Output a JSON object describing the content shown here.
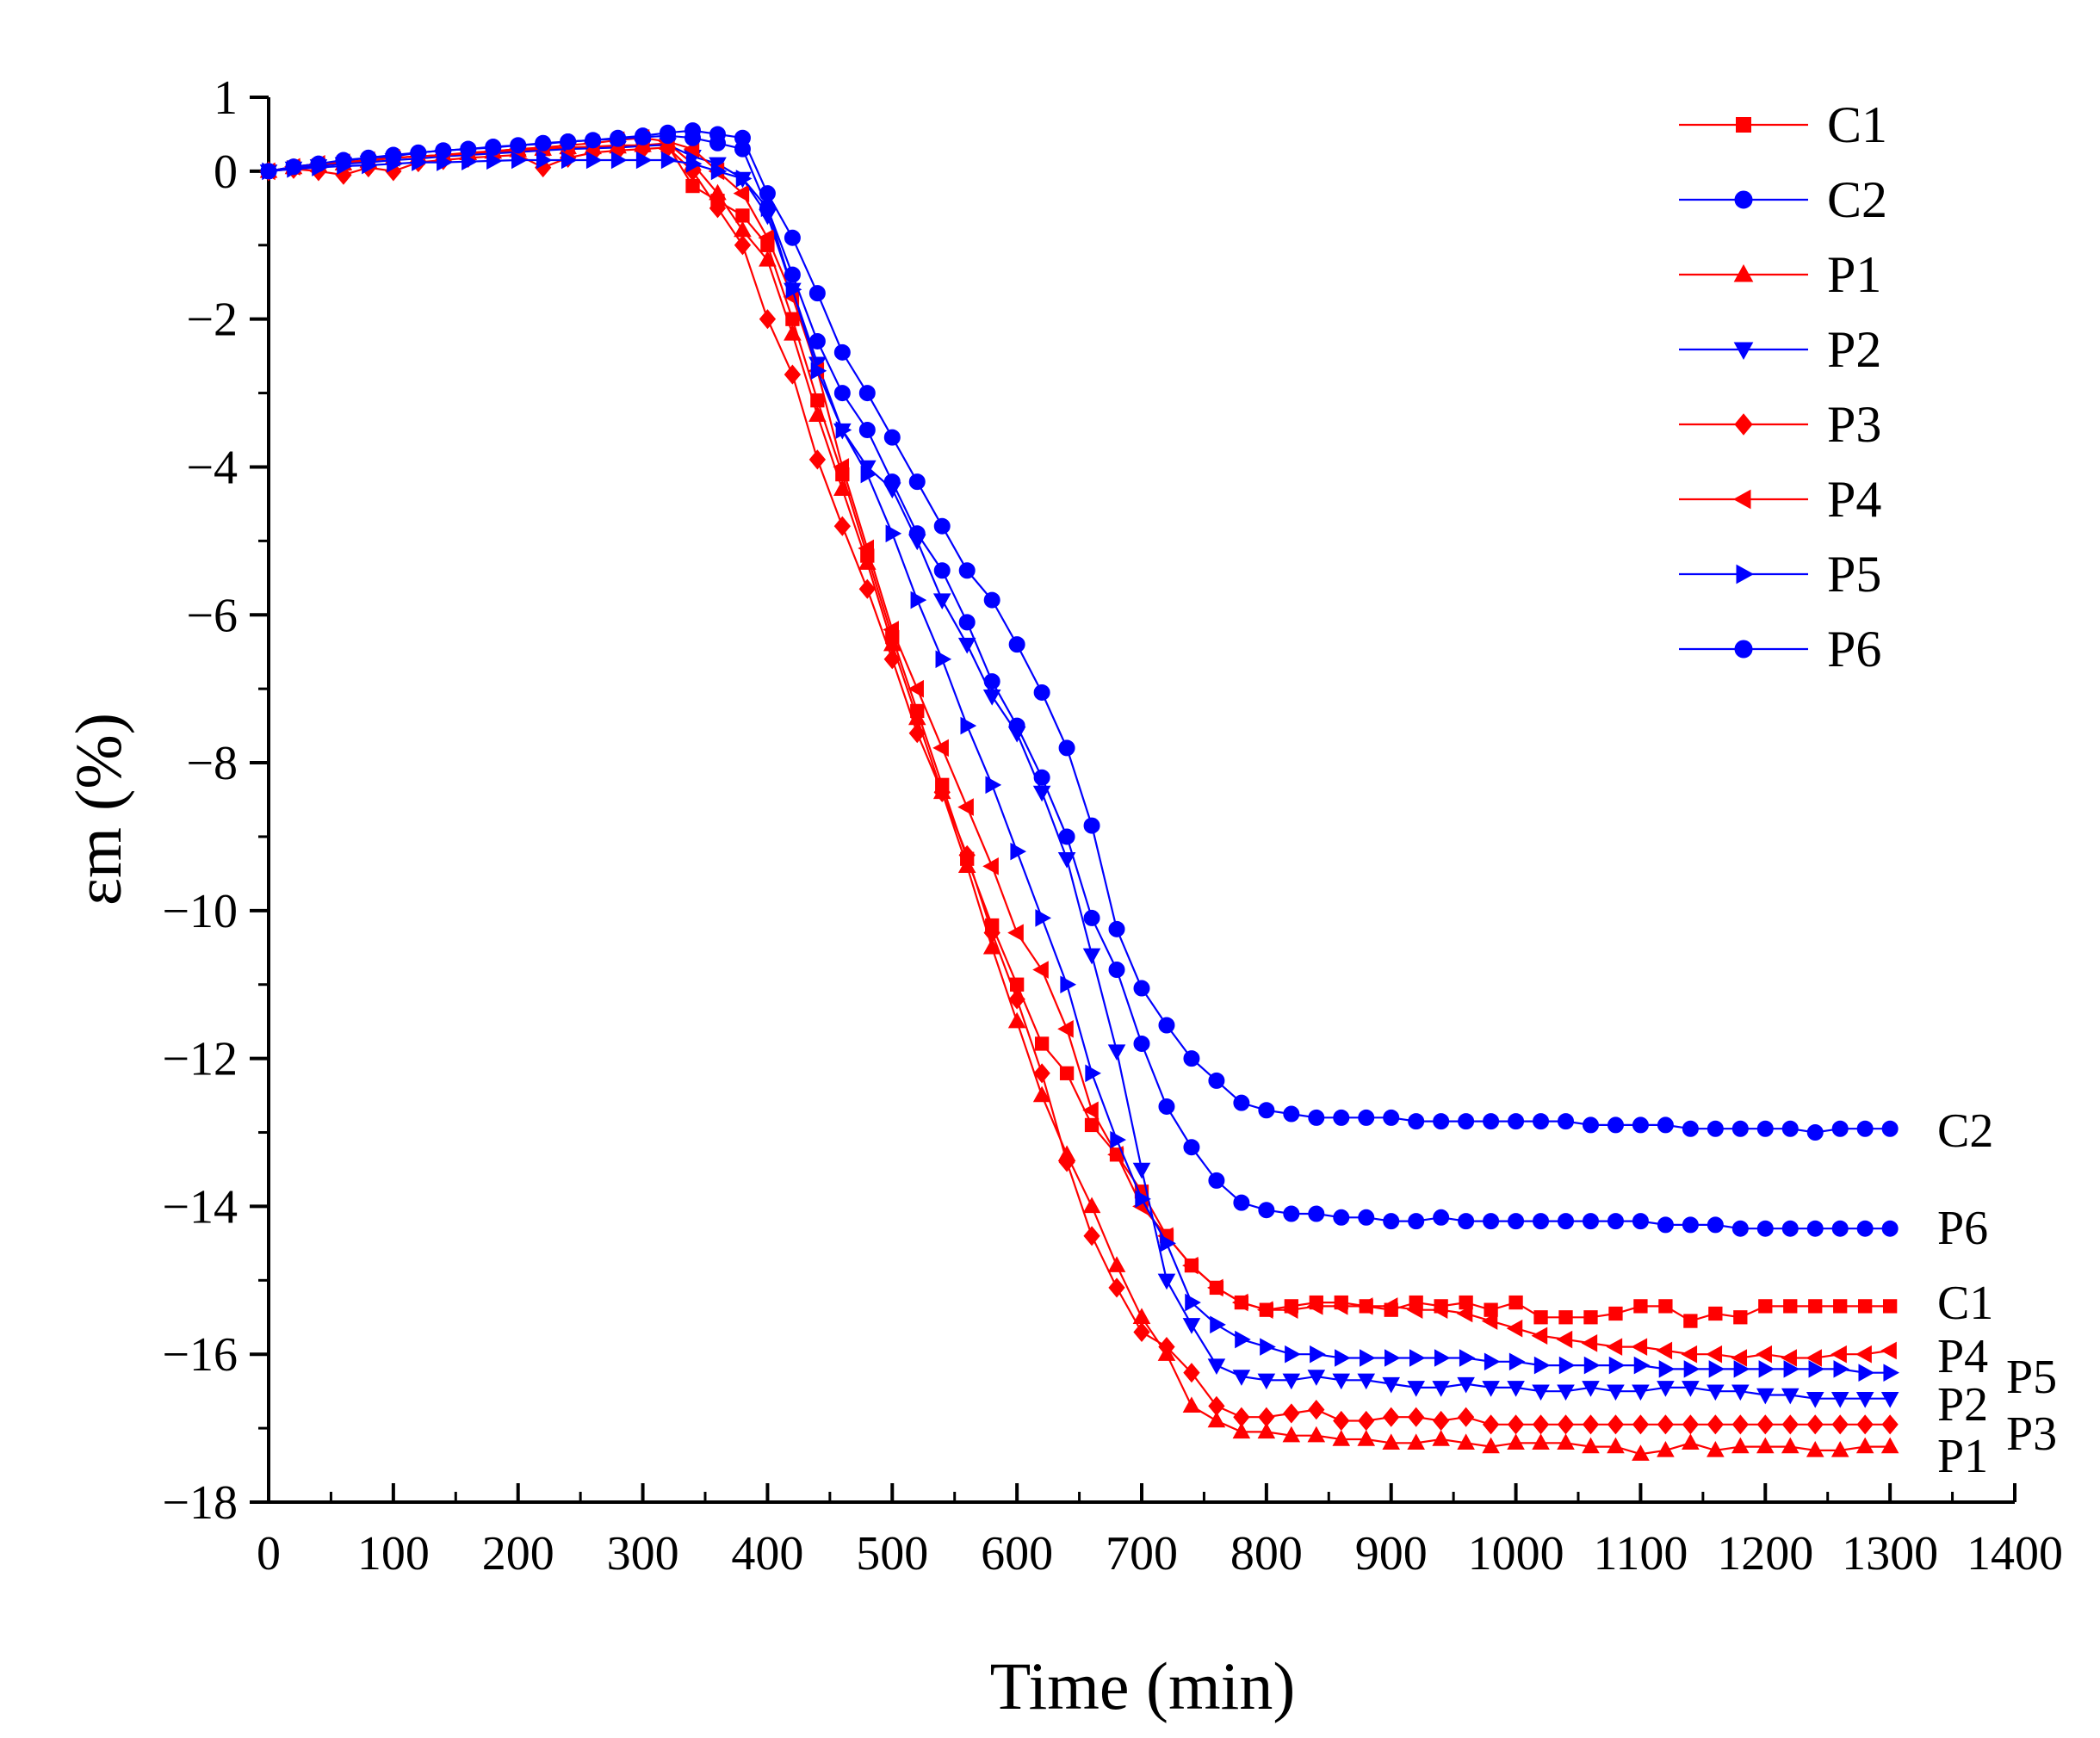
{
  "chart_data": {
    "type": "line",
    "xlabel": "Time (min)",
    "ylabel": "εm (%)",
    "xlim": [
      0,
      1400
    ],
    "ylim": [
      -18,
      1
    ],
    "xticks": [
      0,
      100,
      200,
      300,
      400,
      500,
      600,
      700,
      800,
      900,
      1000,
      1100,
      1200,
      1300,
      1400
    ],
    "xtick_labels": [
      "0",
      "100",
      "200",
      "300",
      "400",
      "500",
      "600",
      "700",
      "800",
      "900",
      "1000",
      "1100",
      "1200",
      "1300",
      "1400"
    ],
    "yticks": [
      1,
      0,
      -2,
      -4,
      -6,
      -8,
      -10,
      -12,
      -14,
      -16,
      -18
    ],
    "ytick_labels": [
      "1",
      "0",
      "−2",
      "−4",
      "−6",
      "−8",
      "−10",
      "−12",
      "−14",
      "−16",
      "−18"
    ],
    "legend_position": "top-right",
    "x": [
      0,
      20,
      40,
      60,
      80,
      100,
      120,
      140,
      160,
      180,
      200,
      220,
      240,
      260,
      280,
      300,
      320,
      340,
      360,
      380,
      400,
      420,
      440,
      460,
      480,
      500,
      520,
      540,
      560,
      580,
      600,
      620,
      640,
      660,
      680,
      700,
      720,
      740,
      760,
      780,
      800,
      820,
      840,
      860,
      880,
      900,
      920,
      940,
      960,
      980,
      1000,
      1020,
      1040,
      1060,
      1080,
      1100,
      1120,
      1140,
      1160,
      1180,
      1200,
      1220,
      1240,
      1260,
      1280,
      1300
    ],
    "series": [
      {
        "name": "C1",
        "color": "#ff0000",
        "marker": "square",
        "end_label": "C1",
        "values": [
          0,
          0.05,
          0.08,
          0.12,
          0.15,
          0.18,
          0.2,
          0.22,
          0.25,
          0.27,
          0.3,
          0.3,
          0.32,
          0.33,
          0.35,
          0.35,
          0.35,
          -0.2,
          -0.4,
          -0.6,
          -1.0,
          -2.0,
          -3.1,
          -4.1,
          -5.2,
          -6.3,
          -7.3,
          -8.3,
          -9.3,
          -10.2,
          -11.0,
          -11.8,
          -12.2,
          -12.9,
          -13.3,
          -13.8,
          -14.4,
          -14.8,
          -15.1,
          -15.3,
          -15.4,
          -15.35,
          -15.3,
          -15.3,
          -15.35,
          -15.4,
          -15.3,
          -15.35,
          -15.3,
          -15.4,
          -15.3,
          -15.5,
          -15.5,
          -15.5,
          -15.45,
          -15.35,
          -15.35,
          -15.55,
          -15.45,
          -15.5,
          -15.35,
          -15.35,
          -15.35,
          -15.35,
          -15.35,
          -15.35
        ]
      },
      {
        "name": "C2",
        "color": "#0000ff",
        "marker": "circle",
        "end_label": "C2",
        "values": [
          0,
          0.06,
          0.1,
          0.14,
          0.18,
          0.22,
          0.25,
          0.28,
          0.3,
          0.33,
          0.35,
          0.37,
          0.4,
          0.42,
          0.45,
          0.48,
          0.52,
          0.55,
          0.5,
          0.45,
          -0.3,
          -0.9,
          -1.65,
          -2.45,
          -3.0,
          -3.6,
          -4.2,
          -4.8,
          -5.4,
          -5.8,
          -6.4,
          -7.05,
          -7.8,
          -8.85,
          -10.25,
          -11.05,
          -11.55,
          -12.0,
          -12.3,
          -12.6,
          -12.7,
          -12.75,
          -12.8,
          -12.8,
          -12.8,
          -12.8,
          -12.85,
          -12.85,
          -12.85,
          -12.85,
          -12.85,
          -12.85,
          -12.85,
          -12.9,
          -12.9,
          -12.9,
          -12.9,
          -12.95,
          -12.95,
          -12.95,
          -12.95,
          -12.95,
          -13.0,
          -12.95,
          -12.95,
          -12.95
        ]
      },
      {
        "name": "P1",
        "color": "#ff0000",
        "marker": "triangle-up",
        "end_label": "P1",
        "values": [
          0,
          0.05,
          0.08,
          0.1,
          0.14,
          0.18,
          0.2,
          0.22,
          0.24,
          0.26,
          0.28,
          0.3,
          0.32,
          0.32,
          0.33,
          0.35,
          0.38,
          0.1,
          -0.3,
          -0.8,
          -1.2,
          -2.2,
          -3.3,
          -4.3,
          -5.3,
          -6.4,
          -7.4,
          -8.4,
          -9.4,
          -10.5,
          -11.5,
          -12.5,
          -13.3,
          -14.0,
          -14.8,
          -15.5,
          -16.0,
          -16.7,
          -16.9,
          -17.05,
          -17.05,
          -17.1,
          -17.1,
          -17.15,
          -17.15,
          -17.2,
          -17.2,
          -17.15,
          -17.2,
          -17.25,
          -17.2,
          -17.2,
          -17.2,
          -17.25,
          -17.25,
          -17.35,
          -17.3,
          -17.2,
          -17.3,
          -17.25,
          -17.25,
          -17.25,
          -17.3,
          -17.3,
          -17.25,
          -17.25
        ]
      },
      {
        "name": "P2",
        "color": "#0000ff",
        "marker": "triangle-down",
        "end_label": "P2",
        "values": [
          0,
          0.04,
          0.07,
          0.1,
          0.12,
          0.15,
          0.17,
          0.2,
          0.22,
          0.24,
          0.26,
          0.28,
          0.3,
          0.31,
          0.32,
          0.34,
          0.36,
          0.2,
          0.1,
          -0.1,
          -0.6,
          -1.6,
          -2.6,
          -3.5,
          -4.0,
          -4.3,
          -5.0,
          -5.8,
          -6.4,
          -7.1,
          -7.6,
          -8.4,
          -9.3,
          -10.6,
          -11.9,
          -13.5,
          -15.0,
          -15.6,
          -16.15,
          -16.3,
          -16.35,
          -16.35,
          -16.3,
          -16.35,
          -16.35,
          -16.4,
          -16.45,
          -16.45,
          -16.4,
          -16.45,
          -16.45,
          -16.5,
          -16.5,
          -16.45,
          -16.5,
          -16.5,
          -16.45,
          -16.45,
          -16.5,
          -16.5,
          -16.55,
          -16.55,
          -16.6,
          -16.6,
          -16.6,
          -16.6
        ]
      },
      {
        "name": "P3",
        "color": "#ff0000",
        "marker": "diamond",
        "end_label": "P3",
        "values": [
          0,
          0.03,
          0.0,
          -0.05,
          0.05,
          0.0,
          0.12,
          0.15,
          0.18,
          0.2,
          0.22,
          0.05,
          0.18,
          0.25,
          0.28,
          0.3,
          0.32,
          0.0,
          -0.5,
          -1.0,
          -2.0,
          -2.75,
          -3.9,
          -4.8,
          -5.65,
          -6.6,
          -7.6,
          -8.4,
          -9.25,
          -10.3,
          -11.2,
          -12.2,
          -13.4,
          -14.4,
          -15.1,
          -15.7,
          -15.9,
          -16.25,
          -16.7,
          -16.85,
          -16.85,
          -16.8,
          -16.75,
          -16.9,
          -16.9,
          -16.85,
          -16.85,
          -16.9,
          -16.85,
          -16.95,
          -16.95,
          -16.95,
          -16.95,
          -16.95,
          -16.95,
          -16.95,
          -16.95,
          -16.95,
          -16.95,
          -16.95,
          -16.95,
          -16.95,
          -16.95,
          -16.95,
          -16.95,
          -16.95
        ]
      },
      {
        "name": "P4",
        "color": "#ff0000",
        "marker": "triangle-left",
        "end_label": "P4",
        "values": [
          0,
          0.06,
          0.1,
          0.12,
          0.15,
          0.18,
          0.2,
          0.22,
          0.24,
          0.27,
          0.3,
          0.32,
          0.35,
          0.38,
          0.42,
          0.45,
          0.4,
          0.3,
          0.0,
          -0.3,
          -0.9,
          -1.7,
          -2.7,
          -4.0,
          -5.1,
          -6.2,
          -7.0,
          -7.8,
          -8.6,
          -9.4,
          -10.3,
          -10.8,
          -11.6,
          -12.7,
          -13.3,
          -14.0,
          -14.4,
          -14.8,
          -15.1,
          -15.3,
          -15.4,
          -15.4,
          -15.35,
          -15.35,
          -15.35,
          -15.35,
          -15.4,
          -15.4,
          -15.45,
          -15.55,
          -15.65,
          -15.75,
          -15.8,
          -15.85,
          -15.9,
          -15.9,
          -15.95,
          -16.0,
          -16.0,
          -16.05,
          -16.0,
          -16.05,
          -16.05,
          -16.0,
          -16.0,
          -15.95
        ]
      },
      {
        "name": "P5",
        "color": "#0000ff",
        "marker": "triangle-right",
        "end_label": "P5",
        "values": [
          0,
          0.03,
          0.05,
          0.07,
          0.08,
          0.1,
          0.12,
          0.12,
          0.13,
          0.14,
          0.15,
          0.15,
          0.15,
          0.15,
          0.15,
          0.15,
          0.15,
          0.1,
          0.0,
          -0.1,
          -0.5,
          -1.6,
          -2.7,
          -3.5,
          -4.1,
          -4.9,
          -5.8,
          -6.6,
          -7.5,
          -8.3,
          -9.2,
          -10.1,
          -11.0,
          -12.2,
          -13.1,
          -13.9,
          -14.5,
          -15.3,
          -15.6,
          -15.8,
          -15.9,
          -16.0,
          -16.0,
          -16.05,
          -16.05,
          -16.05,
          -16.05,
          -16.05,
          -16.05,
          -16.1,
          -16.1,
          -16.15,
          -16.15,
          -16.15,
          -16.15,
          -16.15,
          -16.2,
          -16.2,
          -16.2,
          -16.2,
          -16.2,
          -16.2,
          -16.2,
          -16.2,
          -16.25,
          -16.25
        ]
      },
      {
        "name": "P6",
        "color": "#0000ff",
        "marker": "circle",
        "end_label": "P6",
        "values": [
          0,
          0.06,
          0.1,
          0.15,
          0.18,
          0.2,
          0.25,
          0.28,
          0.3,
          0.32,
          0.35,
          0.38,
          0.4,
          0.42,
          0.44,
          0.46,
          0.48,
          0.45,
          0.38,
          0.3,
          -0.5,
          -1.4,
          -2.3,
          -3.0,
          -3.5,
          -4.2,
          -4.9,
          -5.4,
          -6.1,
          -6.9,
          -7.5,
          -8.2,
          -9.0,
          -10.1,
          -10.8,
          -11.8,
          -12.65,
          -13.2,
          -13.65,
          -13.95,
          -14.05,
          -14.1,
          -14.1,
          -14.15,
          -14.15,
          -14.2,
          -14.2,
          -14.15,
          -14.2,
          -14.2,
          -14.2,
          -14.2,
          -14.2,
          -14.2,
          -14.2,
          -14.2,
          -14.25,
          -14.25,
          -14.25,
          -14.3,
          -14.3,
          -14.3,
          -14.3,
          -14.3,
          -14.3,
          -14.3
        ]
      }
    ]
  }
}
